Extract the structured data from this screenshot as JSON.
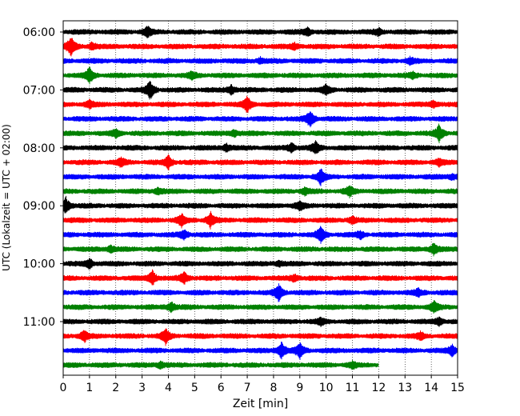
{
  "chart_data": {
    "type": "line",
    "title": "",
    "xlabel": "Zeit  [min]",
    "ylabel": "UTC (Lokalzeit = UTC + 02:00)",
    "xlim": [
      0,
      15
    ],
    "x_ticks": [
      "0",
      "1",
      "2",
      "3",
      "4",
      "5",
      "6",
      "7",
      "8",
      "9",
      "10",
      "11",
      "12",
      "13",
      "14",
      "15"
    ],
    "y_ticks": [
      "06:00",
      "07:00",
      "08:00",
      "09:00",
      "10:00",
      "11:00"
    ],
    "x_grid": "dotted vertical lines at each minute",
    "trace_interval_minutes": 15,
    "trace_colors": [
      "#000000",
      "#ff0000",
      "#0000ff",
      "#008000"
    ],
    "traces": [
      {
        "start": "06:00",
        "color": "#000000",
        "end_min": 15,
        "events": [
          {
            "t": 3.2,
            "amp": 0.6
          },
          {
            "t": 9.3,
            "amp": 0.4
          },
          {
            "t": 12.0,
            "amp": 0.35
          }
        ]
      },
      {
        "start": "06:15",
        "color": "#ff0000",
        "end_min": 15,
        "events": [
          {
            "t": 0.3,
            "amp": 1.0
          },
          {
            "t": 1.1,
            "amp": 0.35
          },
          {
            "t": 8.8,
            "amp": 0.3
          }
        ]
      },
      {
        "start": "06:30",
        "color": "#0000ff",
        "end_min": 15,
        "events": [
          {
            "t": 7.5,
            "amp": 0.3
          },
          {
            "t": 13.2,
            "amp": 0.3
          }
        ]
      },
      {
        "start": "06:45",
        "color": "#008000",
        "end_min": 15,
        "events": [
          {
            "t": 1.0,
            "amp": 0.8
          },
          {
            "t": 4.9,
            "amp": 0.35
          },
          {
            "t": 13.3,
            "amp": 0.3
          }
        ]
      },
      {
        "start": "07:00",
        "color": "#000000",
        "end_min": 15,
        "events": [
          {
            "t": 3.3,
            "amp": 1.0
          },
          {
            "t": 6.4,
            "amp": 0.5
          },
          {
            "t": 10.0,
            "amp": 0.5
          }
        ]
      },
      {
        "start": "07:15",
        "color": "#ff0000",
        "end_min": 15,
        "events": [
          {
            "t": 1.0,
            "amp": 0.4
          },
          {
            "t": 7.0,
            "amp": 0.9
          },
          {
            "t": 14.1,
            "amp": 0.35
          }
        ]
      },
      {
        "start": "07:30",
        "color": "#0000ff",
        "end_min": 15,
        "events": [
          {
            "t": 9.4,
            "amp": 0.9
          }
        ]
      },
      {
        "start": "07:45",
        "color": "#008000",
        "end_min": 15,
        "events": [
          {
            "t": 2.0,
            "amp": 0.4
          },
          {
            "t": 6.5,
            "amp": 0.35
          },
          {
            "t": 14.3,
            "amp": 0.9
          }
        ]
      },
      {
        "start": "08:00",
        "color": "#000000",
        "end_min": 15,
        "events": [
          {
            "t": 6.2,
            "amp": 0.4
          },
          {
            "t": 8.7,
            "amp": 0.5
          },
          {
            "t": 9.6,
            "amp": 0.6
          }
        ]
      },
      {
        "start": "08:15",
        "color": "#ff0000",
        "end_min": 15,
        "events": [
          {
            "t": 2.2,
            "amp": 0.45
          },
          {
            "t": 4.0,
            "amp": 0.7
          },
          {
            "t": 14.3,
            "amp": 0.35
          }
        ]
      },
      {
        "start": "08:30",
        "color": "#0000ff",
        "end_min": 15,
        "events": [
          {
            "t": 9.8,
            "amp": 0.8
          },
          {
            "t": 14.8,
            "amp": 0.35
          }
        ]
      },
      {
        "start": "08:45",
        "color": "#008000",
        "end_min": 15,
        "events": [
          {
            "t": 3.6,
            "amp": 0.35
          },
          {
            "t": 9.2,
            "amp": 0.35
          },
          {
            "t": 10.9,
            "amp": 0.55
          }
        ]
      },
      {
        "start": "09:00",
        "color": "#000000",
        "end_min": 15,
        "events": [
          {
            "t": 0.1,
            "amp": 0.9
          },
          {
            "t": 9.0,
            "amp": 0.45
          }
        ]
      },
      {
        "start": "09:15",
        "color": "#ff0000",
        "end_min": 15,
        "events": [
          {
            "t": 4.5,
            "amp": 0.6
          },
          {
            "t": 5.6,
            "amp": 0.8
          },
          {
            "t": 11.0,
            "amp": 0.35
          }
        ]
      },
      {
        "start": "09:30",
        "color": "#0000ff",
        "end_min": 15,
        "events": [
          {
            "t": 4.6,
            "amp": 0.5
          },
          {
            "t": 9.8,
            "amp": 0.8
          },
          {
            "t": 11.3,
            "amp": 0.35
          }
        ]
      },
      {
        "start": "09:45",
        "color": "#008000",
        "end_min": 15,
        "events": [
          {
            "t": 1.8,
            "amp": 0.35
          },
          {
            "t": 14.1,
            "amp": 0.7
          }
        ]
      },
      {
        "start": "10:00",
        "color": "#000000",
        "end_min": 15,
        "events": [
          {
            "t": 1.0,
            "amp": 0.5
          },
          {
            "t": 8.2,
            "amp": 0.3
          }
        ]
      },
      {
        "start": "10:15",
        "color": "#ff0000",
        "end_min": 15,
        "events": [
          {
            "t": 3.4,
            "amp": 0.8
          },
          {
            "t": 4.6,
            "amp": 0.6
          },
          {
            "t": 8.8,
            "amp": 0.35
          }
        ]
      },
      {
        "start": "10:30",
        "color": "#0000ff",
        "end_min": 15,
        "events": [
          {
            "t": 8.2,
            "amp": 0.9
          },
          {
            "t": 13.5,
            "amp": 0.35
          }
        ]
      },
      {
        "start": "10:45",
        "color": "#008000",
        "end_min": 15,
        "events": [
          {
            "t": 4.1,
            "amp": 0.6
          },
          {
            "t": 14.1,
            "amp": 0.6
          }
        ]
      },
      {
        "start": "11:00",
        "color": "#000000",
        "end_min": 15,
        "events": [
          {
            "t": 9.8,
            "amp": 0.35
          },
          {
            "t": 14.3,
            "amp": 0.45
          }
        ]
      },
      {
        "start": "11:15",
        "color": "#ff0000",
        "end_min": 15,
        "events": [
          {
            "t": 0.8,
            "amp": 0.6
          },
          {
            "t": 3.9,
            "amp": 0.8
          },
          {
            "t": 13.6,
            "amp": 0.35
          }
        ]
      },
      {
        "start": "11:30",
        "color": "#0000ff",
        "end_min": 15,
        "events": [
          {
            "t": 8.3,
            "amp": 0.9
          },
          {
            "t": 9.0,
            "amp": 0.8
          },
          {
            "t": 14.8,
            "amp": 0.6
          }
        ]
      },
      {
        "start": "11:45",
        "color": "#008000",
        "end_min": 12,
        "events": [
          {
            "t": 3.7,
            "amp": 0.35
          },
          {
            "t": 11.0,
            "amp": 0.3
          }
        ]
      }
    ]
  }
}
